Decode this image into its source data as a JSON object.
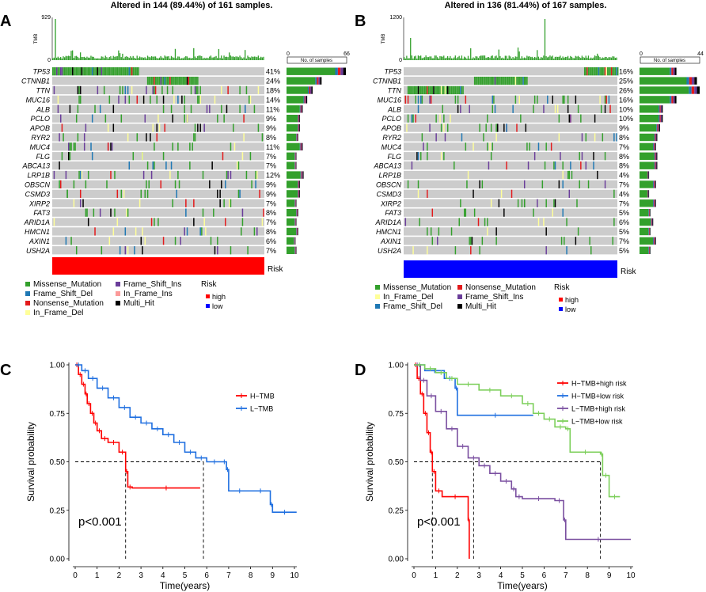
{
  "panels": {
    "A": {
      "label": "A",
      "title": "Altered in 144 (89.44%) of 161 samples.",
      "tmb_axis": {
        "label": "TMB",
        "max_label": "929",
        "min_label": "0"
      },
      "samples_axis": {
        "label": "No. of samples",
        "min_label": "0",
        "max_label": "66",
        "max": 66,
        "n_samples": 161
      },
      "annotation_label": "Risk",
      "annotation_color": "#ff0000",
      "genes": [
        {
          "gene": "TP53",
          "pct": "41%",
          "count": 66
        },
        {
          "gene": "CTNNB1",
          "pct": "24%",
          "count": 39
        },
        {
          "gene": "TTN",
          "pct": "18%",
          "count": 29
        },
        {
          "gene": "MUC16",
          "pct": "14%",
          "count": 23
        },
        {
          "gene": "ALB",
          "pct": "11%",
          "count": 18
        },
        {
          "gene": "PCLO",
          "pct": "9%",
          "count": 15
        },
        {
          "gene": "APOB",
          "pct": "9%",
          "count": 15
        },
        {
          "gene": "RYR2",
          "pct": "8%",
          "count": 13
        },
        {
          "gene": "MUC4",
          "pct": "11%",
          "count": 18
        },
        {
          "gene": "FLG",
          "pct": "7%",
          "count": 11
        },
        {
          "gene": "ABCA13",
          "pct": "7%",
          "count": 11
        },
        {
          "gene": "LRP1B",
          "pct": "12%",
          "count": 19
        },
        {
          "gene": "OBSCN",
          "pct": "9%",
          "count": 15
        },
        {
          "gene": "CSMD3",
          "pct": "9%",
          "count": 15
        },
        {
          "gene": "XIRP2",
          "pct": "7%",
          "count": 11
        },
        {
          "gene": "FAT3",
          "pct": "8%",
          "count": 13
        },
        {
          "gene": "ARID1A",
          "pct": "7%",
          "count": 11
        },
        {
          "gene": "HMCN1",
          "pct": "8%",
          "count": 13
        },
        {
          "gene": "AXIN1",
          "pct": "6%",
          "count": 10
        },
        {
          "gene": "USH2A",
          "pct": "7%",
          "count": 11
        }
      ],
      "legend_columns": [
        [
          "Missense_Mutation",
          "Frame_Shift_Del",
          "Nonsense_Mutation",
          "In_Frame_Del"
        ],
        [
          "Frame_Shift_Ins",
          "In_Frame_Ins",
          "Multi_Hit"
        ]
      ],
      "risk_legend": {
        "title": "Risk",
        "items": [
          "high",
          "low"
        ]
      }
    },
    "B": {
      "label": "B",
      "title": "Altered in 136 (81.44%) of 167 samples.",
      "tmb_axis": {
        "label": "TMB",
        "max_label": "1200",
        "min_label": "0"
      },
      "samples_axis": {
        "label": "No. of samples",
        "min_label": "0",
        "max_label": "44",
        "max": 44,
        "n_samples": 167
      },
      "annotation_label": "Risk",
      "annotation_color": "#0000ff",
      "genes": [
        {
          "gene": "TP53",
          "pct": "16%",
          "count": 27
        },
        {
          "gene": "CTNNB1",
          "pct": "25%",
          "count": 42
        },
        {
          "gene": "TTN",
          "pct": "26%",
          "count": 44
        },
        {
          "gene": "MUC16",
          "pct": "16%",
          "count": 27
        },
        {
          "gene": "ALB",
          "pct": "10%",
          "count": 17
        },
        {
          "gene": "PCLO",
          "pct": "10%",
          "count": 17
        },
        {
          "gene": "APOB",
          "pct": "9%",
          "count": 15
        },
        {
          "gene": "RYR2",
          "pct": "8%",
          "count": 13
        },
        {
          "gene": "MUC4",
          "pct": "7%",
          "count": 12
        },
        {
          "gene": "FLG",
          "pct": "8%",
          "count": 13
        },
        {
          "gene": "ABCA13",
          "pct": "8%",
          "count": 13
        },
        {
          "gene": "LRP1B",
          "pct": "4%",
          "count": 7
        },
        {
          "gene": "OBSCN",
          "pct": "7%",
          "count": 12
        },
        {
          "gene": "CSMD3",
          "pct": "4%",
          "count": 7
        },
        {
          "gene": "XIRP2",
          "pct": "7%",
          "count": 12
        },
        {
          "gene": "FAT3",
          "pct": "5%",
          "count": 8
        },
        {
          "gene": "ARID1A",
          "pct": "6%",
          "count": 10
        },
        {
          "gene": "HMCN1",
          "pct": "5%",
          "count": 8
        },
        {
          "gene": "AXIN1",
          "pct": "7%",
          "count": 12
        },
        {
          "gene": "USH2A",
          "pct": "5%",
          "count": 8
        }
      ],
      "legend_columns": [
        [
          "Missense_Mutation",
          "In_Frame_Del",
          "Frame_Shift_Del"
        ],
        [
          "Nonsense_Mutation",
          "Frame_Shift_Ins",
          "Multi_Hit"
        ]
      ],
      "risk_legend": {
        "title": "Risk",
        "items": [
          "high",
          "low"
        ]
      }
    }
  },
  "colors": {
    "Missense_Mutation": "#33a02c",
    "Frame_Shift_Del": "#1f78b4",
    "Nonsense_Mutation": "#e31a1c",
    "In_Frame_Del": "#ffff99",
    "Frame_Shift_Ins": "#6a3d9a",
    "In_Frame_Ins": "#fb9a99",
    "Multi_Hit": "#000000",
    "high": "#ff0000",
    "low": "#0000ff",
    "background": "#cccccc"
  },
  "chart_data": [
    {
      "type": "line",
      "panel": "C",
      "title": "",
      "xlabel": "Time(years)",
      "ylabel": "Survival probability",
      "xlim": [
        0,
        10
      ],
      "ylim": [
        0,
        1
      ],
      "xticks": [
        0,
        1,
        2,
        3,
        4,
        5,
        6,
        7,
        8,
        9,
        10
      ],
      "yticks": [
        "0.00",
        "0.25",
        "0.50",
        "0.75",
        "1.00"
      ],
      "annotation": "p<0.001",
      "median_line": {
        "y": 0.5,
        "x": [
          2.3,
          5.85
        ]
      },
      "series": [
        {
          "name": "H−TMB",
          "color": "#ff0000",
          "x": [
            0,
            0.15,
            0.3,
            0.45,
            0.55,
            0.7,
            0.85,
            1.0,
            1.2,
            1.5,
            2.0,
            2.3,
            2.4,
            2.6,
            5.7
          ],
          "y": [
            1,
            0.95,
            0.9,
            0.85,
            0.8,
            0.75,
            0.7,
            0.66,
            0.62,
            0.6,
            0.55,
            0.45,
            0.37,
            0.365,
            0.365
          ]
        },
        {
          "name": "L−TMB",
          "color": "#1f6fe0",
          "x": [
            0,
            0.3,
            0.6,
            1.0,
            1.5,
            2.0,
            2.5,
            3.0,
            3.5,
            4.0,
            4.5,
            5.0,
            5.5,
            6.0,
            6.7,
            6.9,
            7.0,
            8.0,
            8.9,
            9.0,
            10.1
          ],
          "y": [
            1,
            0.97,
            0.93,
            0.88,
            0.83,
            0.78,
            0.73,
            0.7,
            0.67,
            0.64,
            0.6,
            0.55,
            0.52,
            0.5,
            0.5,
            0.46,
            0.35,
            0.35,
            0.28,
            0.24,
            0.24
          ]
        }
      ]
    },
    {
      "type": "line",
      "panel": "D",
      "title": "",
      "xlabel": "Time(years)",
      "ylabel": "Survival probability",
      "xlim": [
        0,
        10
      ],
      "ylim": [
        0,
        1
      ],
      "xticks": [
        0,
        1,
        2,
        3,
        4,
        5,
        6,
        7,
        8,
        9,
        10
      ],
      "yticks": [
        "0.00",
        "0.25",
        "0.50",
        "0.75",
        "1.00"
      ],
      "annotation": "p<0.001",
      "median_line": {
        "y": 0.5,
        "x": [
          0.85,
          2.75,
          8.6
        ]
      },
      "series": [
        {
          "name": "H−TMB+high risk",
          "color": "#ff0000",
          "x": [
            0,
            0.15,
            0.3,
            0.45,
            0.6,
            0.75,
            0.85,
            1.0,
            1.3,
            2.5,
            2.55
          ],
          "y": [
            1,
            0.93,
            0.85,
            0.75,
            0.65,
            0.55,
            0.45,
            0.35,
            0.32,
            0.2,
            0.0
          ]
        },
        {
          "name": "H−TMB+low risk",
          "color": "#1f6fe0",
          "x": [
            0,
            0.5,
            1.4,
            1.9,
            2.0,
            5.5
          ],
          "y": [
            1,
            0.97,
            0.93,
            0.88,
            0.74,
            0.74
          ]
        },
        {
          "name": "L−TMB+high risk",
          "color": "#7a4fa0",
          "x": [
            0,
            0.3,
            0.6,
            1.0,
            1.5,
            2.0,
            2.5,
            3.0,
            3.5,
            4.0,
            4.5,
            4.7,
            5.0,
            6.5,
            6.9,
            7.0,
            10.0
          ],
          "y": [
            1,
            0.92,
            0.84,
            0.76,
            0.67,
            0.58,
            0.52,
            0.48,
            0.44,
            0.4,
            0.36,
            0.32,
            0.31,
            0.3,
            0.2,
            0.1,
            0.1
          ]
        },
        {
          "name": "L−TMB+low risk",
          "color": "#7ccf5a",
          "x": [
            0,
            0.5,
            1.0,
            1.5,
            2.0,
            3.0,
            4.0,
            5.0,
            5.5,
            6.0,
            6.5,
            7.0,
            7.2,
            8.6,
            8.7,
            9.0,
            9.5
          ],
          "y": [
            1,
            0.98,
            0.96,
            0.93,
            0.9,
            0.87,
            0.84,
            0.8,
            0.75,
            0.72,
            0.68,
            0.67,
            0.55,
            0.54,
            0.43,
            0.32,
            0.32
          ]
        }
      ]
    }
  ]
}
